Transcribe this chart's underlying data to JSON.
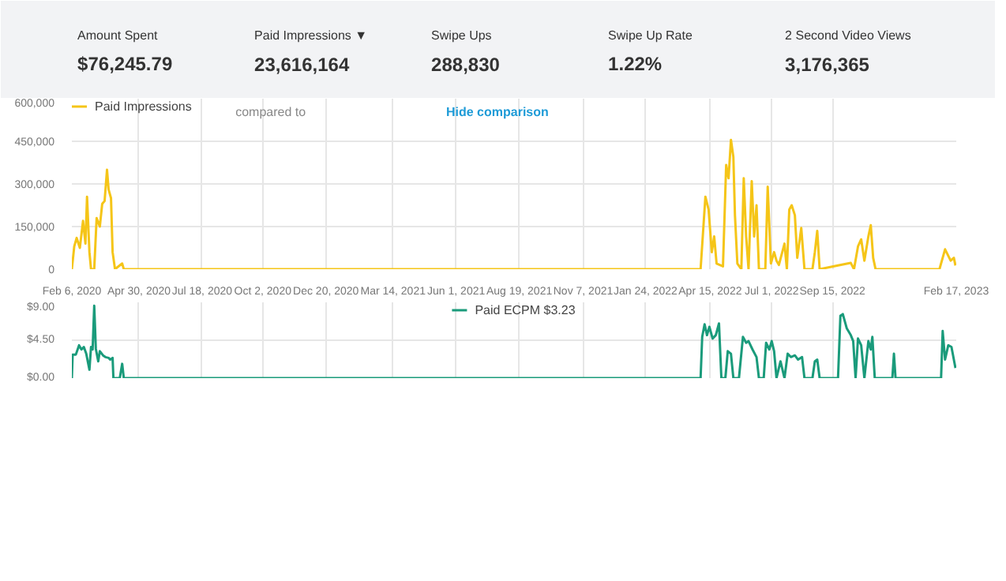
{
  "chart_data": [
    {
      "type": "other",
      "annotations": [
        "Amount Spent",
        "$76,245.79",
        "Paid Impressions ▼",
        "23,616,164",
        "Swipe Ups",
        "288,830",
        "Swipe Up Rate",
        "1.22%",
        "2 Second Video Views",
        "3,176,365"
      ]
    },
    {
      "type": "line",
      "legend": "top left",
      "grid": true,
      "annotations": [
        "compared to",
        "Hide comparison"
      ],
      "xlim": [
        "2020-02-06",
        "2023-02-17"
      ],
      "xticks": [
        {
          "value": "2020-02-06",
          "label": "Feb 6, 2020"
        },
        {
          "value": "2020-04-30",
          "label": "Apr 30, 2020"
        },
        {
          "value": "2020-07-18",
          "label": "Jul 18, 2020"
        },
        {
          "value": "2020-10-02",
          "label": "Oct 2, 2020"
        },
        {
          "value": "2020-12-20",
          "label": "Dec 20, 2020"
        },
        {
          "value": "2021-03-14",
          "label": "Mar 14, 2021"
        },
        {
          "value": "2021-06-01",
          "label": "Jun 1, 2021"
        },
        {
          "value": "2021-08-19",
          "label": "Aug 19, 2021"
        },
        {
          "value": "2021-11-07",
          "label": "Nov 7, 2021"
        },
        {
          "value": "2022-01-24",
          "label": "Jan 24, 2022"
        },
        {
          "value": "2022-04-15",
          "label": "Apr 15, 2022"
        },
        {
          "value": "2022-07-01",
          "label": "Jul 1, 2022"
        },
        {
          "value": "2022-09-15",
          "label": "Sep 15, 2022"
        },
        {
          "value": "2023-02-17",
          "label": "Feb 17, 2023"
        }
      ],
      "ylim": [
        0,
        600000
      ],
      "yticks": [
        0,
        {
          "value": 150000,
          "label": "150,000"
        },
        {
          "value": 300000,
          "label": "300,000"
        },
        {
          "value": 450000,
          "label": "450,000"
        },
        {
          "value": 600000,
          "label": "600,000"
        }
      ],
      "series": [
        {
          "name": "Paid Impressions",
          "color": "#f5c518",
          "x": [
            "2020-02-06",
            "2020-02-09",
            "2020-02-12",
            "2020-02-16",
            "2020-02-20",
            "2020-02-23",
            "2020-02-25",
            "2020-02-28",
            "2020-03-01",
            "2020-03-05",
            "2020-03-08",
            "2020-03-12",
            "2020-03-15",
            "2020-03-18",
            "2020-03-21",
            "2020-03-23",
            "2020-03-26",
            "2020-03-28",
            "2020-03-31",
            "2020-04-09",
            "2020-04-11",
            "2022-04-03",
            "2022-04-09",
            "2022-04-13",
            "2022-04-17",
            "2022-04-20",
            "2022-04-23",
            "2022-05-01",
            "2022-05-05",
            "2022-05-08",
            "2022-05-11",
            "2022-05-14",
            "2022-05-16",
            "2022-05-19",
            "2022-05-24",
            "2022-05-27",
            "2022-05-30",
            "2022-06-02",
            "2022-06-06",
            "2022-06-09",
            "2022-06-12",
            "2022-06-15",
            "2022-06-23",
            "2022-06-26",
            "2022-06-30",
            "2022-07-04",
            "2022-07-07",
            "2022-07-10",
            "2022-07-17",
            "2022-07-20",
            "2022-07-23",
            "2022-07-26",
            "2022-07-30",
            "2022-08-02",
            "2022-08-07",
            "2022-08-11",
            "2022-08-21",
            "2022-08-24",
            "2022-08-27",
            "2022-08-30",
            "2022-09-22",
            "2022-10-08",
            "2022-10-12",
            "2022-10-17",
            "2022-10-21",
            "2022-10-25",
            "2022-10-30",
            "2022-11-02",
            "2022-11-05",
            "2022-11-08",
            "2023-01-27",
            "2023-02-03",
            "2023-02-10",
            "2023-02-14",
            "2023-02-16"
          ],
          "values": [
            0,
            80000,
            110000,
            75000,
            170000,
            90000,
            255000,
            60000,
            0,
            0,
            180000,
            150000,
            230000,
            240000,
            350000,
            280000,
            250000,
            60000,
            0,
            20000,
            0,
            0,
            255000,
            210000,
            60000,
            115000,
            20000,
            10000,
            367000,
            320000,
            455000,
            395000,
            190000,
            20000,
            0,
            320000,
            115000,
            0,
            310000,
            115000,
            225000,
            0,
            0,
            290000,
            20000,
            60000,
            30000,
            15000,
            90000,
            0,
            210000,
            225000,
            190000,
            40000,
            145000,
            0,
            0,
            60000,
            135000,
            0,
            13000,
            22000,
            0,
            80000,
            105000,
            30000,
            115000,
            155000,
            40000,
            0,
            0,
            70000,
            30000,
            40000,
            13000
          ]
        }
      ]
    },
    {
      "type": "line",
      "legend": "top",
      "grid": true,
      "tick_labels": "y",
      "xlim": [
        "2020-02-06",
        "2023-02-17"
      ],
      "xticks": [
        {
          "value": "2020-02-06",
          "label": null
        },
        {
          "value": "2020-04-30",
          "label": null
        },
        {
          "value": "2020-07-18",
          "label": null
        },
        {
          "value": "2020-10-02",
          "label": null
        },
        {
          "value": "2020-12-20",
          "label": null
        },
        {
          "value": "2021-03-14",
          "label": null
        },
        {
          "value": "2021-06-01",
          "label": null
        },
        {
          "value": "2021-08-19",
          "label": null
        },
        {
          "value": "2021-11-07",
          "label": null
        },
        {
          "value": "2022-01-24",
          "label": null
        },
        {
          "value": "2022-04-15",
          "label": null
        },
        {
          "value": "2022-07-01",
          "label": null
        },
        {
          "value": "2022-09-15",
          "label": null
        },
        {
          "value": "2023-02-17",
          "label": null
        }
      ],
      "ylim": [
        0,
        9
      ],
      "yticks": [
        {
          "value": 0,
          "label": "$0.00"
        },
        {
          "value": 4.5,
          "label": "$4.50"
        },
        {
          "value": 9,
          "label": "$9.00"
        }
      ],
      "series": [
        {
          "name": "Paid ECPM $3.23",
          "color": "#1a9b7b",
          "x": [
            "2020-02-06",
            "2020-02-07",
            "2020-02-11",
            "2020-02-15",
            "2020-02-18",
            "2020-02-21",
            "2020-02-24",
            "2020-02-28",
            "2020-03-01",
            "2020-03-03",
            "2020-03-05",
            "2020-03-07",
            "2020-03-10",
            "2020-03-12",
            "2020-03-16",
            "2020-03-19",
            "2020-03-23",
            "2020-03-25",
            "2020-03-28",
            "2020-03-29",
            "2020-04-06",
            "2020-04-09",
            "2020-04-11",
            "2022-04-03",
            "2022-04-05",
            "2022-04-08",
            "2022-04-11",
            "2022-04-14",
            "2022-04-18",
            "2022-04-22",
            "2022-04-26",
            "2022-04-29",
            "2022-05-04",
            "2022-05-07",
            "2022-05-11",
            "2022-05-14",
            "2022-05-21",
            "2022-05-26",
            "2022-05-30",
            "2022-06-02",
            "2022-06-07",
            "2022-06-12",
            "2022-06-15",
            "2022-06-21",
            "2022-06-24",
            "2022-06-28",
            "2022-07-01",
            "2022-07-04",
            "2022-07-07",
            "2022-07-12",
            "2022-07-17",
            "2022-07-21",
            "2022-07-25",
            "2022-07-30",
            "2022-08-03",
            "2022-08-08",
            "2022-08-11",
            "2022-08-21",
            "2022-08-24",
            "2022-08-27",
            "2022-08-30",
            "2022-09-22",
            "2022-09-25",
            "2022-09-28",
            "2022-10-03",
            "2022-10-08",
            "2022-10-11",
            "2022-10-14",
            "2022-10-17",
            "2022-10-21",
            "2022-10-25",
            "2022-10-30",
            "2022-11-02",
            "2022-11-04",
            "2022-11-07",
            "2022-11-29",
            "2022-12-01",
            "2022-12-03",
            "2023-01-29",
            "2023-01-31",
            "2023-02-03",
            "2023-02-07",
            "2023-02-11",
            "2023-02-16"
          ],
          "values": [
            0,
            2.8,
            2.8,
            3.9,
            3.4,
            3.7,
            2.9,
            1.0,
            3.7,
            3.4,
            8.6,
            3.5,
            2.0,
            3.2,
            2.7,
            2.5,
            2.4,
            2.2,
            2.4,
            0,
            0,
            1.7,
            0,
            0,
            4.9,
            6.4,
            5.1,
            6.1,
            4.7,
            5.1,
            6.5,
            0,
            0,
            3.2,
            2.9,
            0,
            0,
            4.9,
            4.2,
            4.4,
            3.4,
            2.5,
            0,
            0,
            4.2,
            3.4,
            4.4,
            3.2,
            0,
            2.0,
            0,
            2.9,
            2.5,
            2.7,
            2.2,
            2.5,
            0,
            0,
            2.0,
            2.2,
            0,
            0,
            7.4,
            7.6,
            5.9,
            5.1,
            4.4,
            0,
            4.7,
            3.9,
            0,
            4.4,
            3.4,
            4.9,
            0,
            0,
            2.9,
            0,
            0,
            5.6,
            2.2,
            3.9,
            3.7,
            1.2
          ]
        }
      ]
    }
  ]
}
